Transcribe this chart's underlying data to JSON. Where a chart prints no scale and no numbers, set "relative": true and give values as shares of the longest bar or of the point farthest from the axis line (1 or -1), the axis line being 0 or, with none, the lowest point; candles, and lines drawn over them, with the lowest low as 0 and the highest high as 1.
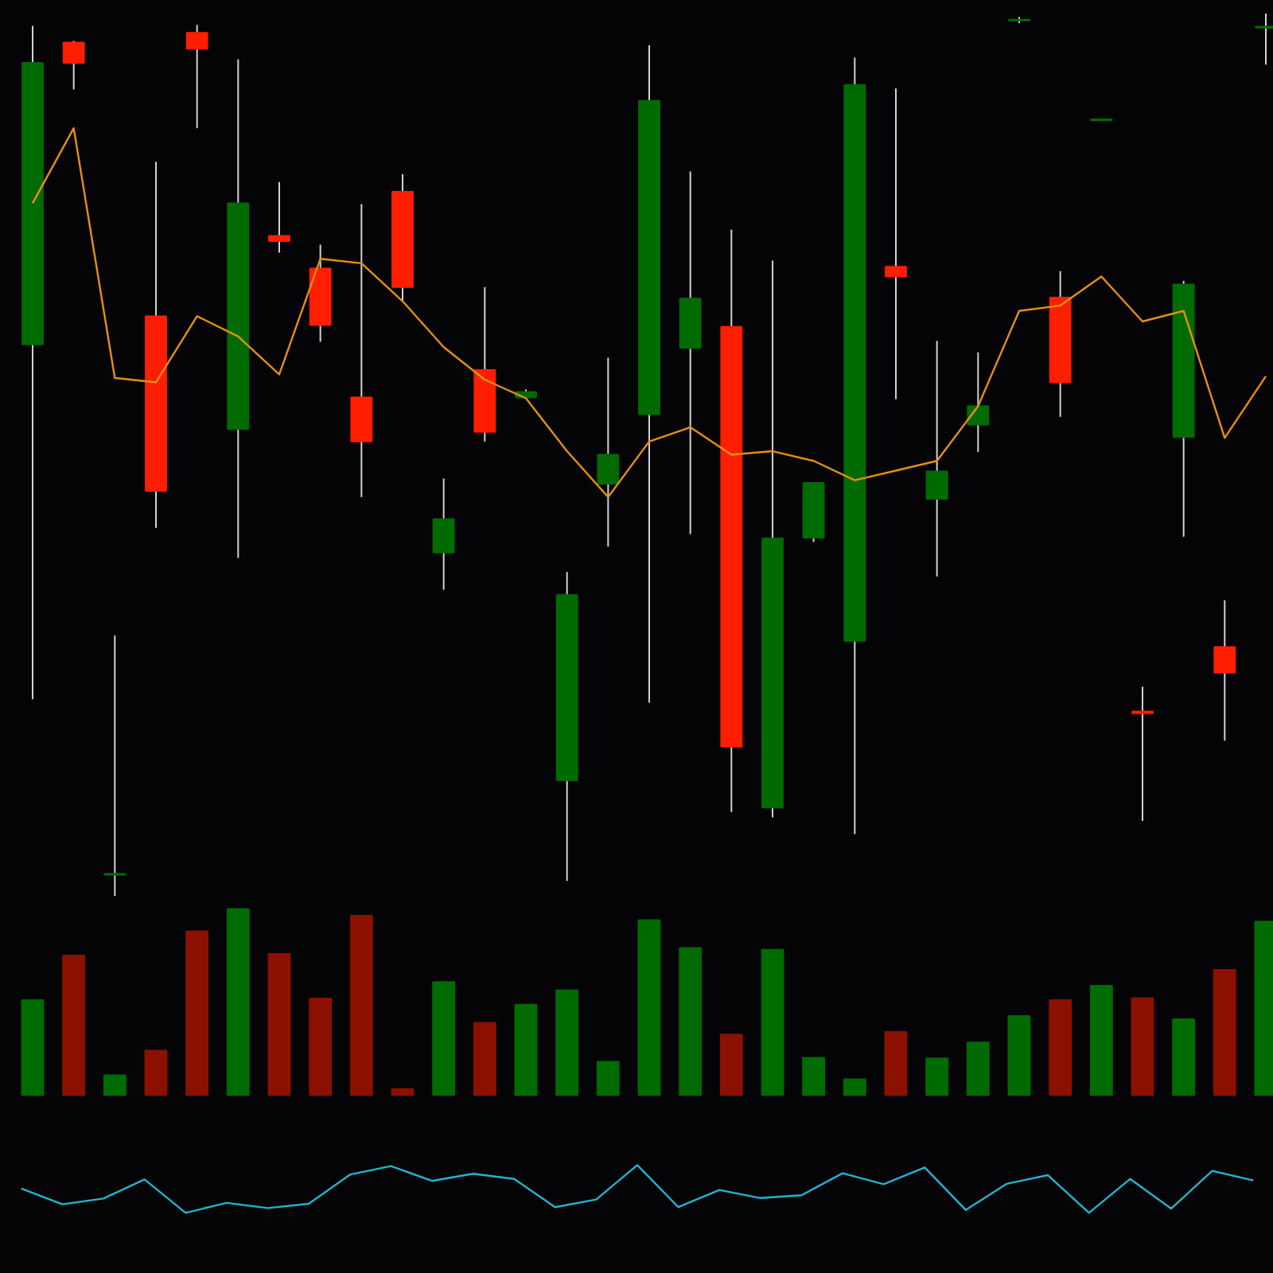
{
  "chart_data": [
    {
      "type": "candlestick",
      "relative": true,
      "tick_labels": false,
      "categories": [
        null,
        null,
        null,
        null,
        null,
        null,
        null,
        null,
        null,
        null,
        null,
        null,
        null,
        null,
        null,
        null,
        null,
        null,
        null,
        null,
        null,
        null,
        null,
        null,
        null,
        null,
        null,
        null,
        null,
        null,
        null
      ],
      "ohlc": [
        [
          0.625,
          0.986,
          0.223,
          0.944
        ],
        [
          0.967,
          0.969,
          0.914,
          0.944
        ],
        [
          0.024,
          0.295,
          0,
          0.025
        ],
        [
          0.657,
          0.832,
          0.417,
          0.459
        ],
        [
          0.978,
          0.987,
          0.87,
          0.96
        ],
        [
          0.529,
          0.948,
          0.383,
          0.785
        ],
        [
          0.748,
          0.809,
          0.729,
          0.742
        ],
        [
          0.711,
          0.738,
          0.628,
          0.647
        ],
        [
          0.565,
          0.784,
          0.452,
          0.515
        ],
        [
          0.798,
          0.818,
          0.674,
          0.69
        ],
        [
          0.389,
          0.473,
          0.347,
          0.427
        ],
        [
          0.596,
          0.69,
          0.515,
          0.526
        ],
        [
          0.565,
          0.574,
          0.564,
          0.571
        ],
        [
          0.131,
          0.367,
          0.017,
          0.341
        ],
        [
          0.467,
          0.61,
          0.396,
          0.5
        ],
        [
          0.546,
          0.964,
          0.219,
          0.901
        ],
        [
          0.621,
          0.821,
          0.41,
          0.677
        ],
        [
          0.645,
          0.755,
          0.095,
          0.169
        ],
        [
          0.1,
          0.72,
          0.089,
          0.405
        ],
        [
          0.406,
          0.469,
          0.401,
          0.468
        ],
        [
          0.289,
          0.95,
          0.07,
          0.919
        ],
        [
          0.713,
          0.915,
          0.563,
          0.702
        ],
        [
          0.45,
          0.629,
          0.362,
          0.481
        ],
        [
          0.534,
          0.616,
          0.503,
          0.555
        ],
        [
          0.992,
          0.996,
          0.989,
          0.993
        ],
        [
          0.678,
          0.708,
          0.543,
          0.582
        ],
        [
          0.879,
          0.881,
          0.878,
          0.88
        ],
        [
          0.209,
          0.237,
          0.085,
          0.207
        ],
        [
          0.52,
          0.697,
          0.407,
          0.693
        ],
        [
          0.282,
          0.335,
          0.176,
          0.253
        ],
        [
          0.984,
          1.0,
          0.942,
          0.985
        ]
      ],
      "colors": [
        "#006b00",
        "#ff1e00",
        "#006b00",
        "#ff1e00",
        "#ff1e00",
        "#006b00",
        "#ff1e00",
        "#ff1e00",
        "#ff1e00",
        "#ff1e00",
        "#006b00",
        "#ff1e00",
        "#006b00",
        "#006b00",
        "#006b00",
        "#006b00",
        "#006b00",
        "#ff1e00",
        "#006b00",
        "#006b00",
        "#006b00",
        "#ff1e00",
        "#006b00",
        "#006b00",
        "#006b00",
        "#ff1e00",
        "#006b00",
        "#ff1e00",
        "#006b00",
        "#ff1e00",
        "#006b00"
      ],
      "series": [
        {
          "type": "line",
          "color": "#e6900f",
          "values": [
            0.785,
            0.87,
            0.587,
            0.582,
            0.657,
            0.634,
            0.591,
            0.722,
            0.717,
            0.674,
            0.622,
            0.585,
            0.564,
            0.504,
            0.452,
            0.515,
            0.531,
            0.5,
            0.504,
            0.493,
            0.471,
            0.482,
            0.493,
            0.555,
            0.663,
            0.669,
            0.702,
            0.651,
            0.663,
            0.519,
            0.589
          ]
        }
      ]
    },
    {
      "type": "bar",
      "relative": true,
      "tick_labels": false,
      "categories": [
        null,
        null,
        null,
        null,
        null,
        null,
        null,
        null,
        null,
        null,
        null,
        null,
        null,
        null,
        null,
        null,
        null,
        null,
        null,
        null,
        null,
        null,
        null,
        null,
        null,
        null,
        null,
        null,
        null,
        null,
        null
      ],
      "values": [
        0.51,
        0.75,
        0.106,
        0.239,
        0.88,
        1.0,
        0.758,
        0.519,
        0.963,
        0.032,
        0.607,
        0.388,
        0.485,
        0.562,
        0.179,
        0.94,
        0.79,
        0.325,
        0.781,
        0.2,
        0.085,
        0.339,
        0.197,
        0.282,
        0.425,
        0.51,
        0.587,
        0.521,
        0.408,
        0.673,
        0.932
      ],
      "colors": [
        "#006b00",
        "#8c1000",
        "#006b00",
        "#8c1000",
        "#8c1000",
        "#006b00",
        "#8c1000",
        "#8c1000",
        "#8c1000",
        "#8c1000",
        "#006b00",
        "#8c1000",
        "#006b00",
        "#006b00",
        "#006b00",
        "#006b00",
        "#006b00",
        "#8c1000",
        "#006b00",
        "#006b00",
        "#006b00",
        "#8c1000",
        "#006b00",
        "#006b00",
        "#006b00",
        "#8c1000",
        "#006b00",
        "#8c1000",
        "#006b00",
        "#8c1000",
        "#006b00"
      ]
    },
    {
      "type": "line",
      "relative": true,
      "tick_labels": false,
      "categories": [
        null,
        null,
        null,
        null,
        null,
        null,
        null,
        null,
        null,
        null,
        null,
        null,
        null,
        null,
        null,
        null,
        null,
        null,
        null,
        null,
        null,
        null,
        null,
        null,
        null,
        null,
        null,
        null,
        null,
        null,
        null
      ],
      "series": [
        {
          "color": "#22b5cc",
          "values": [
            0.51,
            0.18,
            0.3,
            0.7,
            0,
            0.21,
            0.1,
            0.19,
            0.8,
            0.98,
            0.67,
            0.82,
            0.71,
            0.12,
            0.28,
            1.0,
            0.12,
            0.48,
            0.31,
            0.37,
            0.83,
            0.6,
            0.95,
            0.06,
            0.61,
            0.79,
            0,
            0.71,
            0.09,
            0.88,
            0.68
          ]
        }
      ]
    }
  ]
}
